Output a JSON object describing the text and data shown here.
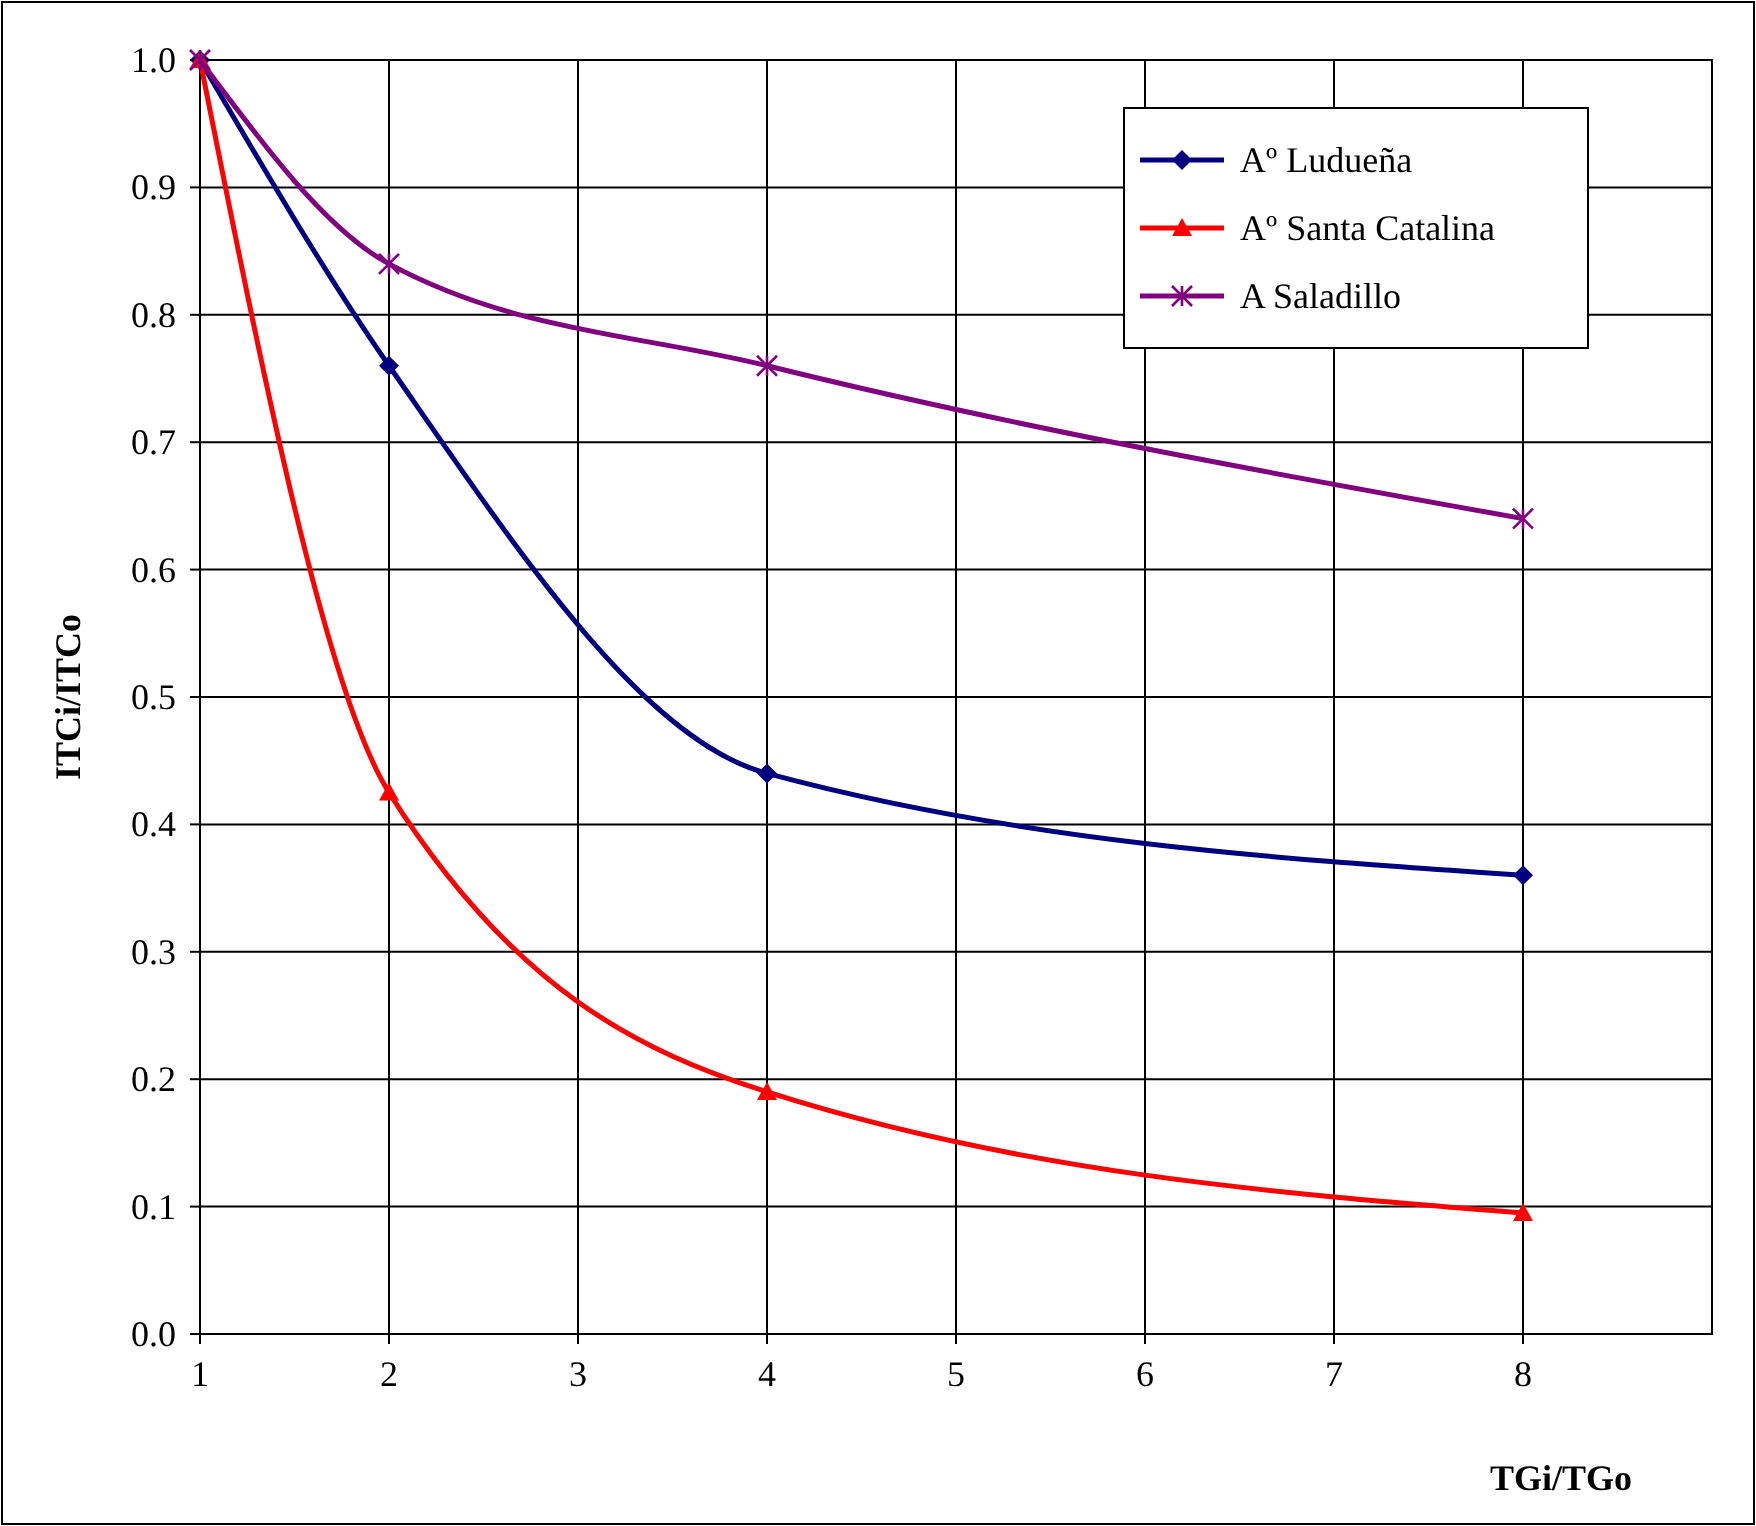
{
  "chart_data": {
    "type": "line",
    "xlabel": "TGi/TGo",
    "ylabel": "ITCi/ITCo",
    "x": [
      1,
      2,
      4,
      8
    ],
    "series": [
      {
        "name": "Aº Ludueña",
        "color": "#000080",
        "values": [
          1,
          0.76,
          0.44,
          0.36
        ],
        "marker": "diamond"
      },
      {
        "name": "Aº Santa Catalina",
        "color": "#ff0000",
        "values": [
          1,
          0.425,
          0.19,
          0.095
        ],
        "marker": "triangle"
      },
      {
        "name": "A Saladillo",
        "color": "#800080",
        "values": [
          1,
          0.84,
          0.76,
          0.64
        ],
        "marker": "cross"
      }
    ],
    "xlim": [
      1,
      9
    ],
    "xticks": [
      1,
      2,
      3,
      4,
      5,
      6,
      7,
      8
    ],
    "ylim": [
      0,
      1
    ],
    "yticks": [
      {
        "value": 0,
        "label": "0.0"
      },
      0.1,
      0.2,
      0.3,
      0.4,
      0.5,
      0.6,
      0.7,
      0.8,
      0.9,
      {
        "value": 1,
        "label": "1.0"
      }
    ],
    "grid": true,
    "legend": "top right",
    "line_style": "solid"
  }
}
